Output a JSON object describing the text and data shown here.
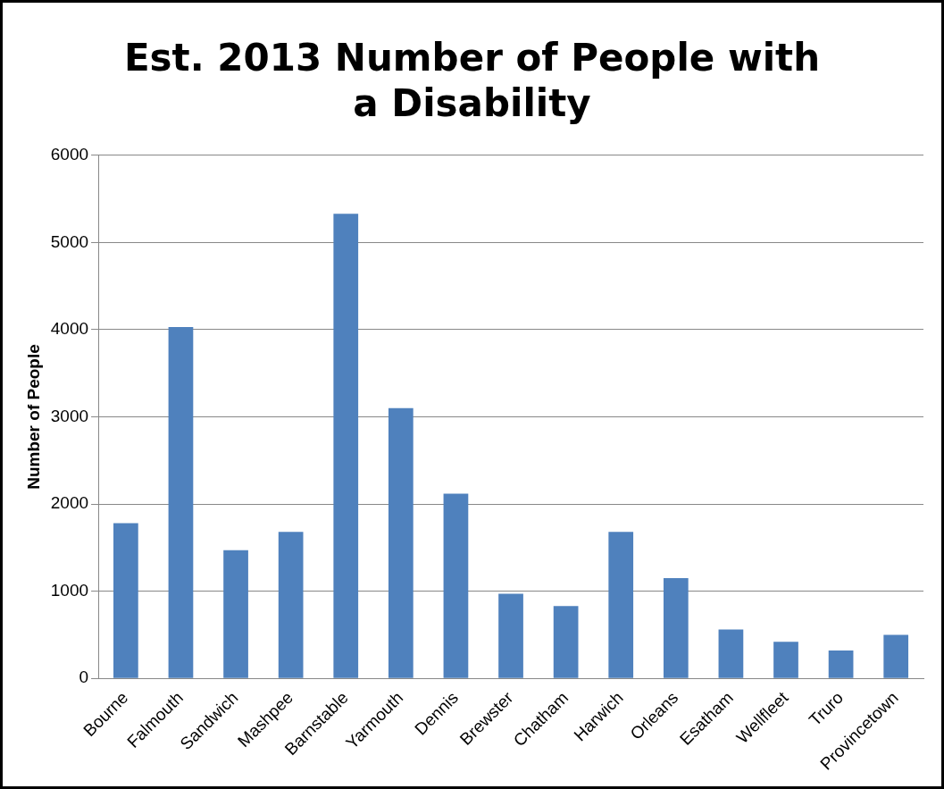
{
  "chart_data": {
    "type": "bar",
    "title": "Est. 2013 Number of People with a Disability",
    "ylabel": "Number of People",
    "categories": [
      "Bourne",
      "Falmouth",
      "Sandwich",
      "Mashpee",
      "Barnstable",
      "Yarmouth",
      "Dennis",
      "Brewster",
      "Chatham",
      "Harwich",
      "Orleans",
      "Esatham",
      "Wellfleet",
      "Truro",
      "Provincetown"
    ],
    "values": [
      1780,
      4030,
      1470,
      1680,
      5330,
      3100,
      2120,
      970,
      830,
      1680,
      1150,
      560,
      420,
      320,
      500
    ],
    "color": "#4f81bd",
    "ylim": [
      0,
      6000
    ],
    "yticks": [
      0,
      1000,
      2000,
      3000,
      4000,
      5000,
      6000
    ],
    "grid": "y",
    "legend": false
  }
}
